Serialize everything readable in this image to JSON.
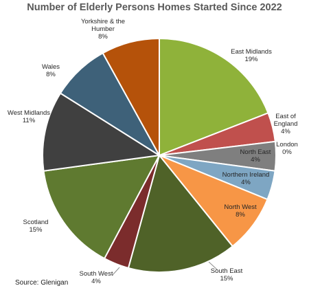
{
  "chart_data": {
    "type": "pie",
    "title": "Number of Elderly Persons Homes Started Since 2022",
    "source": "Source: Glenigan",
    "slices": [
      {
        "name": "East Midlands",
        "value": 19,
        "label": "19%",
        "color": "#8fb23a",
        "lines": [
          "East Midlands",
          "19%"
        ]
      },
      {
        "name": "East of England",
        "value": 4,
        "label": "4%",
        "color": "#c0504d",
        "lines": [
          "East of",
          "England",
          "4%"
        ]
      },
      {
        "name": "London",
        "value": 0,
        "label": "0%",
        "color": "#4f81bd",
        "lines": [
          "London",
          "0%"
        ]
      },
      {
        "name": "North East",
        "value": 4,
        "label": "4%",
        "color": "#7f7f7f",
        "lines": [
          "North East",
          "4%"
        ]
      },
      {
        "name": "Northern Ireland",
        "value": 4,
        "label": "4%",
        "color": "#7ea6c3",
        "lines": [
          "Northern Ireland",
          "4%"
        ]
      },
      {
        "name": "North West",
        "value": 8,
        "label": "8%",
        "color": "#f79646",
        "lines": [
          "North West",
          "8%"
        ]
      },
      {
        "name": "South East",
        "value": 15,
        "label": "15%",
        "color": "#4f6228",
        "lines": [
          "South East",
          "15%"
        ]
      },
      {
        "name": "South West",
        "value": 3.5,
        "label": "4%",
        "color": "#7b2c2c",
        "lines": [
          "South West",
          "4%"
        ]
      },
      {
        "name": "Scotland",
        "value": 15,
        "label": "15%",
        "color": "#5f7a30",
        "lines": [
          "Scotland",
          "15%"
        ]
      },
      {
        "name": "West Midlands",
        "value": 11,
        "label": "11%",
        "color": "#404040",
        "lines": [
          "West Midlands",
          "11%"
        ]
      },
      {
        "name": "Wales",
        "value": 8,
        "label": "8%",
        "color": "#3e6179",
        "lines": [
          "Wales",
          "8%"
        ]
      },
      {
        "name": "Yorkshire & the Humber",
        "value": 8,
        "label": "8%",
        "color": "#b5520a",
        "lines": [
          "Yorkshire & the",
          "Humber",
          "8%"
        ]
      }
    ]
  }
}
